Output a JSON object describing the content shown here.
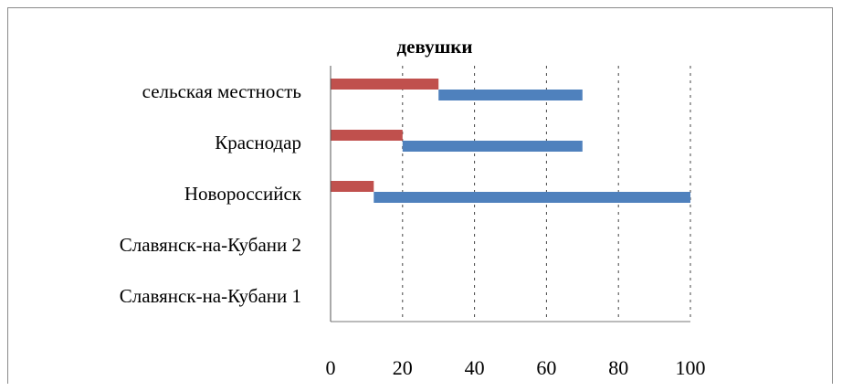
{
  "chart_data": {
    "type": "bar",
    "orientation": "horizontal",
    "title": "девушки",
    "categories": [
      "сельская местность",
      "Краснодар",
      "Новороссийск",
      "Славянск-на-Кубани 2",
      "Славянск-на-Кубани 1"
    ],
    "series": [
      {
        "color": "#c0504d",
        "values": [
          30,
          20,
          12,
          0,
          0
        ]
      },
      {
        "color": "#4f81bd",
        "values": [
          40,
          50,
          88,
          0,
          0
        ]
      }
    ],
    "xlim": [
      0,
      100
    ],
    "x_ticks": [
      "0",
      "20",
      "40",
      "60",
      "80",
      "100"
    ],
    "grid": true,
    "legend": "none"
  }
}
